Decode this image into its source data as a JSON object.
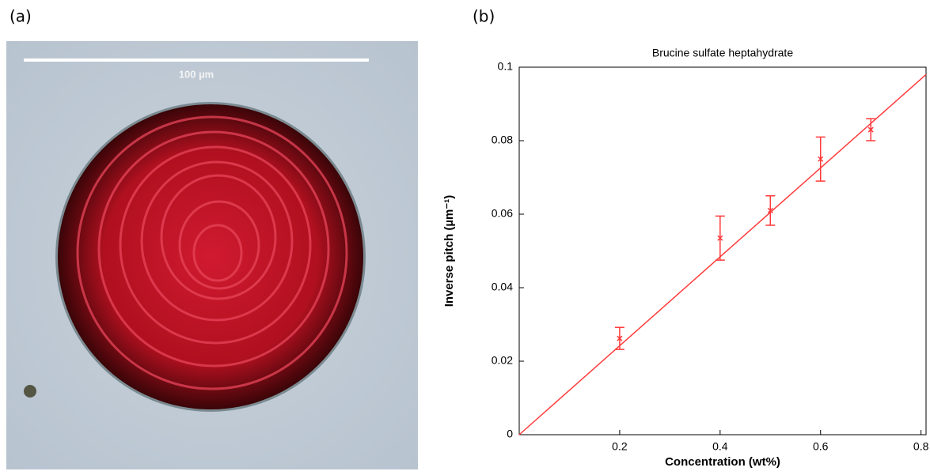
{
  "panel_a": {
    "label": "(a)",
    "scale_bar": "100 µm"
  },
  "panel_b": {
    "label": "(b)"
  },
  "chart_data": {
    "type": "scatter",
    "title": "Brucine sulfate heptahydrate",
    "xlabel": "Concentration (wt%)",
    "ylabel": "Inverse pitch (µm⁻¹)",
    "x": [
      0.2,
      0.4,
      0.5,
      0.6,
      0.7
    ],
    "values": [
      0.0262,
      0.0535,
      0.061,
      0.075,
      0.083
    ],
    "errors": [
      0.003,
      0.006,
      0.004,
      0.006,
      0.003
    ],
    "color": "#ff3b3b",
    "fit": {
      "x": [
        0,
        0.81
      ],
      "values": [
        0,
        0.098
      ]
    },
    "xlim": [
      0,
      0.81
    ],
    "ylim": [
      0,
      0.1
    ],
    "xticks": [
      0.2,
      0.4,
      0.6,
      0.8
    ],
    "yticks": [
      0,
      0.02,
      0.04,
      0.06,
      0.08,
      0.1
    ]
  }
}
